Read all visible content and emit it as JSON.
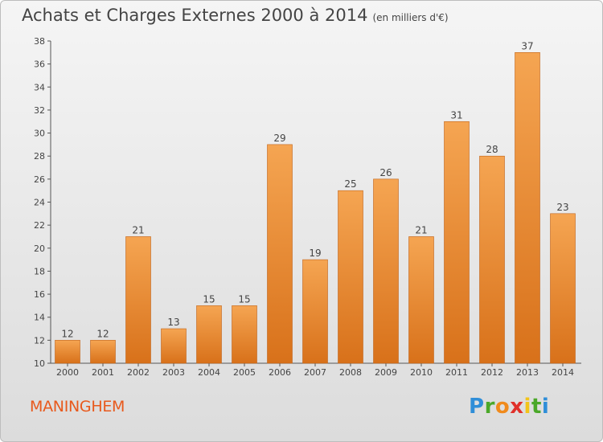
{
  "title": "Achats et Charges Externes 2000 à 2014",
  "subtitle": "(en milliers d'€)",
  "commune": "MANINGHEM",
  "logo": {
    "letters": [
      "P",
      "r",
      "o",
      "x",
      "i",
      "t",
      "i"
    ],
    "colors": [
      "#2f8ed8",
      "#4aa829",
      "#f08a1c",
      "#e0302a",
      "#f2c41a",
      "#4aa829",
      "#2f8ed8"
    ]
  },
  "colors": {
    "bar_top": "#f5a552",
    "bar_bottom": "#d8711a",
    "bar_edge": "#c0631a",
    "title": "#444444",
    "commune": "#e8591c"
  },
  "chart_data": {
    "type": "bar",
    "title": "Achats et Charges Externes 2000 à 2014",
    "subtitle": "(en milliers d'€)",
    "categories": [
      "2000",
      "2001",
      "2002",
      "2003",
      "2004",
      "2005",
      "2006",
      "2007",
      "2008",
      "2009",
      "2010",
      "2011",
      "2012",
      "2013",
      "2014"
    ],
    "values": [
      12,
      12,
      21,
      13,
      15,
      15,
      29,
      19,
      25,
      26,
      21,
      31,
      28,
      37,
      23
    ],
    "ylim": [
      10,
      38
    ],
    "yticks": [
      10,
      12,
      14,
      16,
      18,
      20,
      22,
      24,
      26,
      28,
      30,
      32,
      34,
      36,
      38
    ],
    "xlabel": "",
    "ylabel": "",
    "grid": false,
    "legend": "none"
  }
}
